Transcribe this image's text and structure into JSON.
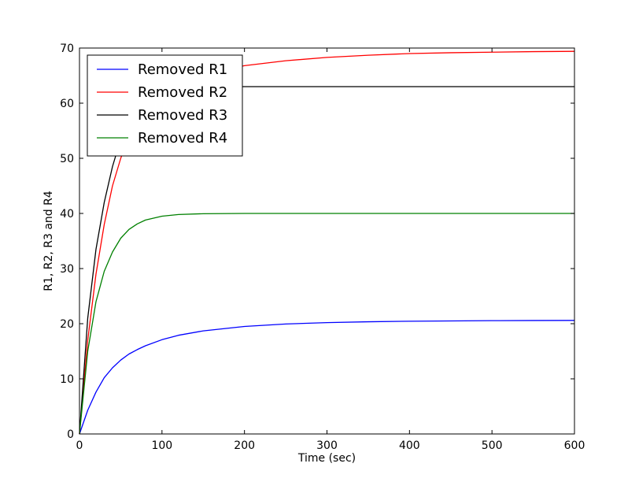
{
  "chart_data": {
    "type": "line",
    "title": "",
    "xlabel": "Time (sec)",
    "ylabel": "R1, R2, R3 and R4",
    "xlim": [
      0,
      600
    ],
    "ylim": [
      0,
      70
    ],
    "x_ticks": [
      0,
      100,
      200,
      300,
      400,
      500,
      600
    ],
    "y_ticks": [
      0,
      10,
      20,
      30,
      40,
      50,
      60,
      70
    ],
    "grid": false,
    "legend_position": "top-left",
    "x": [
      0,
      10,
      20,
      30,
      40,
      50,
      60,
      70,
      80,
      100,
      120,
      150,
      200,
      250,
      300,
      350,
      400,
      450,
      500,
      550,
      600
    ],
    "series": [
      {
        "name": "Removed R1",
        "color": "#0000ff",
        "values": [
          0,
          4.3,
          7.6,
          10.2,
          12.0,
          13.4,
          14.5,
          15.3,
          16.0,
          17.1,
          17.9,
          18.7,
          19.5,
          19.95,
          20.2,
          20.35,
          20.45,
          20.5,
          20.55,
          20.58,
          20.6
        ]
      },
      {
        "name": "Removed R2",
        "color": "#ff0000",
        "values": [
          0,
          17.0,
          29.0,
          38.0,
          45.0,
          50.0,
          54.0,
          56.5,
          58.5,
          61.5,
          63.5,
          65.2,
          66.8,
          67.7,
          68.3,
          68.7,
          69.0,
          69.15,
          69.25,
          69.35,
          69.4
        ]
      },
      {
        "name": "Removed R3",
        "color": "#000000",
        "values": [
          0,
          21.0,
          33.5,
          42.0,
          48.5,
          53.5,
          57.0,
          59.3,
          60.8,
          62.3,
          62.75,
          62.95,
          63.0,
          63.0,
          63.0,
          63.0,
          63.0,
          63.0,
          63.0,
          63.0,
          63.0
        ]
      },
      {
        "name": "Removed R4",
        "color": "#008000",
        "values": [
          0,
          15.0,
          24.0,
          29.5,
          33.0,
          35.5,
          37.1,
          38.1,
          38.8,
          39.5,
          39.8,
          39.95,
          40.0,
          40.0,
          40.0,
          40.0,
          40.0,
          40.0,
          40.0,
          40.0,
          40.0
        ]
      }
    ]
  }
}
